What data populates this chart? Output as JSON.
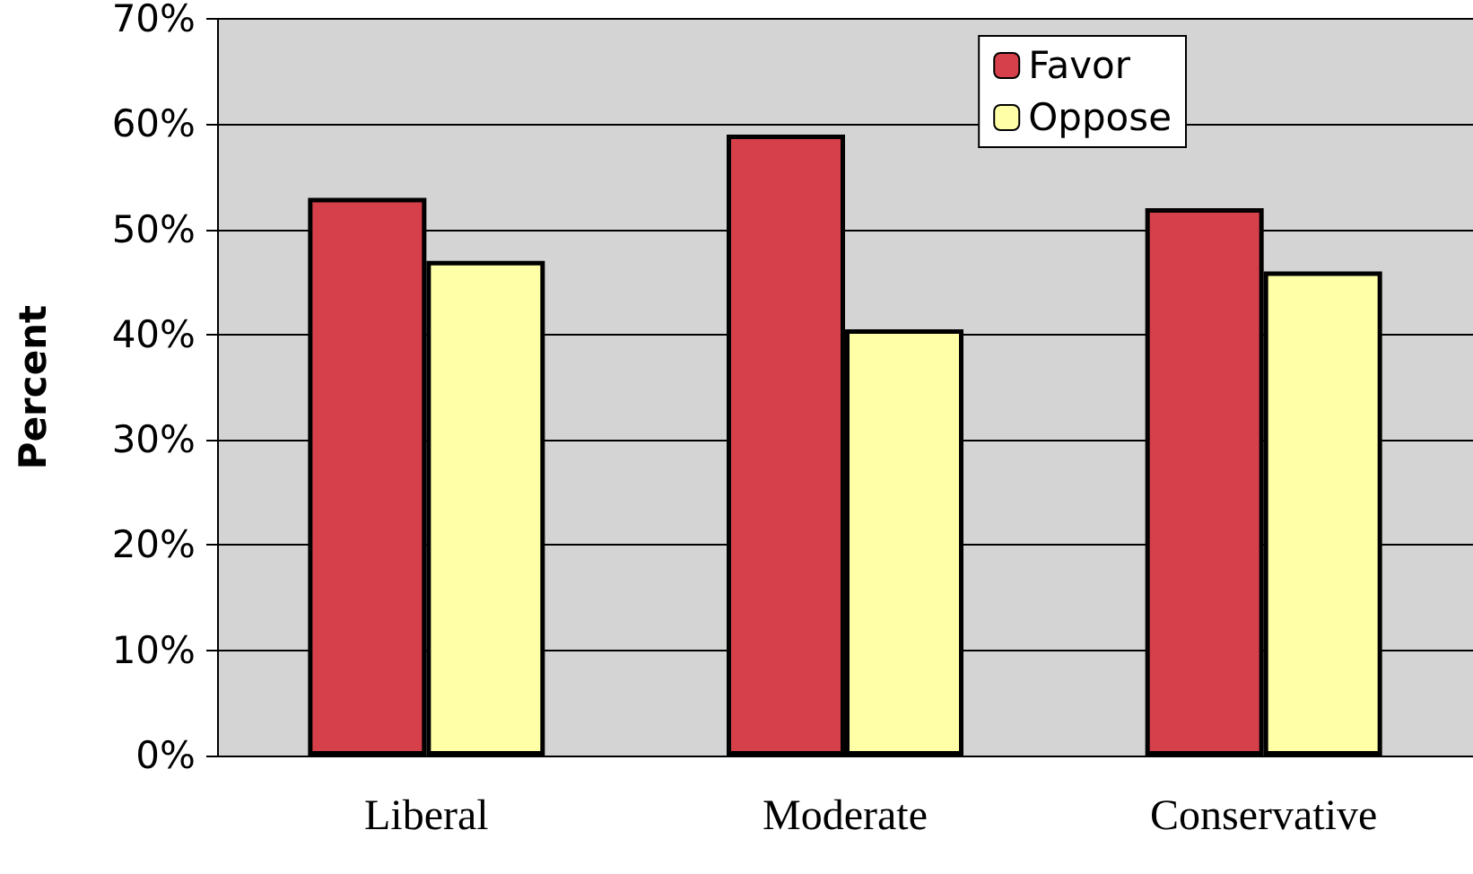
{
  "chart_data": {
    "type": "bar",
    "ylabel": "Percent",
    "categories": [
      "Liberal",
      "Moderate",
      "Conservative"
    ],
    "series": [
      {
        "name": "Favor",
        "color": "#d6404a",
        "values": [
          53,
          59,
          52
        ]
      },
      {
        "name": "Oppose",
        "color": "#ffffa8",
        "values": [
          47,
          40.5,
          46
        ]
      }
    ],
    "ylim": [
      0,
      70
    ],
    "yticks": [
      {
        "value": 0,
        "label": "0%"
      },
      {
        "value": 10,
        "label": "10%"
      },
      {
        "value": 20,
        "label": "20%"
      },
      {
        "value": 30,
        "label": "30%"
      },
      {
        "value": 40,
        "label": "40%"
      },
      {
        "value": 50,
        "label": "50%"
      },
      {
        "value": 60,
        "label": "60%"
      },
      {
        "value": 70,
        "label": "70%"
      }
    ],
    "grid": "y",
    "legend": "top right"
  }
}
